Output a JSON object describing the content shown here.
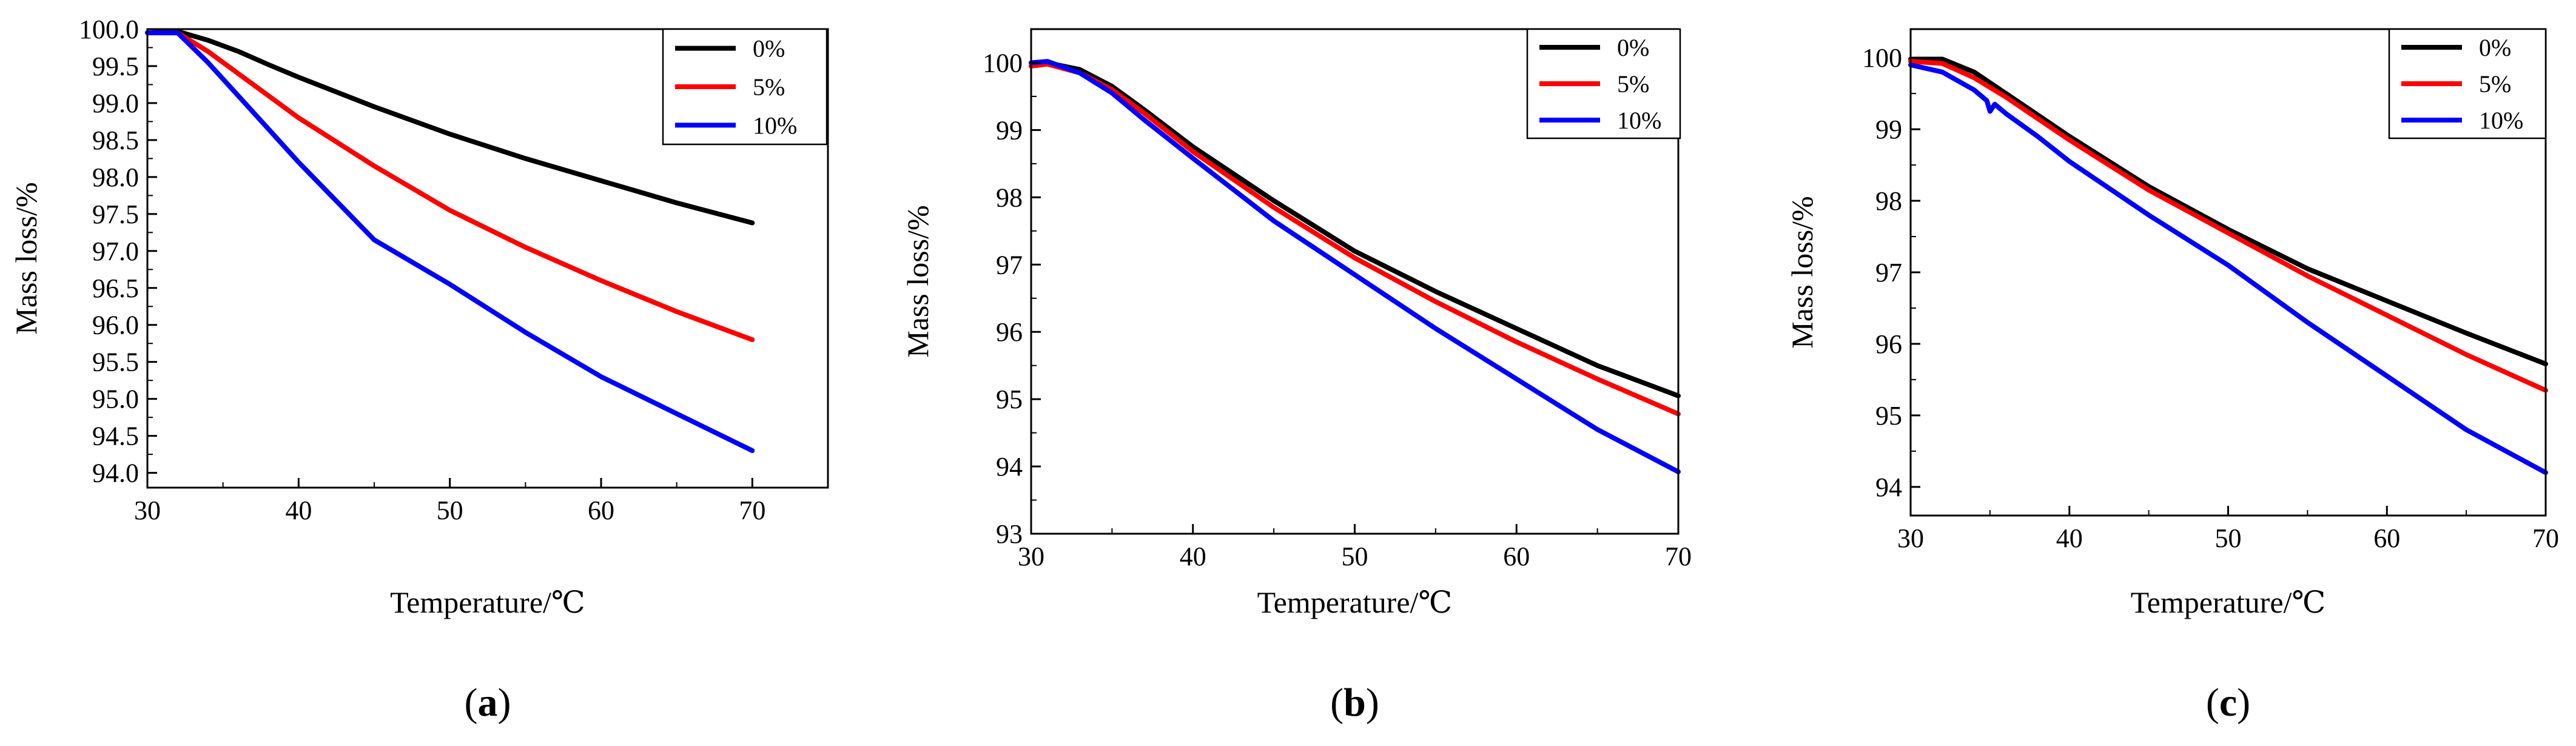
{
  "chart_data": [
    {
      "type": "line",
      "panel": "a",
      "caption": "(a)",
      "caption_parts": [
        "(",
        "a",
        ")"
      ],
      "xlabel": "Temperature/℃",
      "ylabel": "Mass loss/%",
      "xlim": [
        30,
        75
      ],
      "ylim": [
        93.8,
        100.0
      ],
      "xticks": [
        30,
        40,
        50,
        60,
        70
      ],
      "xtick_labels": [
        "30",
        "40",
        "50",
        "60",
        "70"
      ],
      "yticks": [
        94.0,
        94.5,
        95.0,
        95.5,
        96.0,
        96.5,
        97.0,
        97.5,
        98.0,
        98.5,
        99.0,
        99.5,
        100.0
      ],
      "ytick_labels": [
        "94.0",
        "94.5",
        "95.0",
        "95.5",
        "96.0",
        "96.5",
        "97.0",
        "97.5",
        "98.0",
        "98.5",
        "99.0",
        "99.5",
        "100.0"
      ],
      "legend": "top-right",
      "series": [
        {
          "name": "0%",
          "color": "#000000",
          "x": [
            30,
            32,
            34,
            36,
            38,
            40,
            45,
            50,
            55,
            60,
            65,
            70
          ],
          "y": [
            99.95,
            99.97,
            99.85,
            99.7,
            99.52,
            99.35,
            98.95,
            98.58,
            98.25,
            97.95,
            97.65,
            97.38
          ]
        },
        {
          "name": "5%",
          "color": "#ff0000",
          "x": [
            30,
            32,
            34,
            36,
            38,
            40,
            45,
            50,
            55,
            60,
            65,
            70
          ],
          "y": [
            99.95,
            99.95,
            99.7,
            99.4,
            99.1,
            98.8,
            98.15,
            97.55,
            97.05,
            96.6,
            96.18,
            95.8
          ]
        },
        {
          "name": "10%",
          "color": "#0000ff",
          "x": [
            30,
            32,
            34,
            36,
            38,
            40,
            45,
            50,
            55,
            60,
            65,
            70
          ],
          "y": [
            99.95,
            99.95,
            99.55,
            99.1,
            98.65,
            98.2,
            97.15,
            96.55,
            95.9,
            95.3,
            94.8,
            94.3
          ]
        }
      ]
    },
    {
      "type": "line",
      "panel": "b",
      "caption": "(b)",
      "caption_parts": [
        "(",
        "b",
        ")"
      ],
      "xlabel": "Temperature/℃",
      "ylabel": "Mass loss/%",
      "xlim": [
        30,
        70
      ],
      "ylim": [
        93,
        100.5
      ],
      "xticks": [
        30,
        40,
        50,
        60,
        70
      ],
      "xtick_labels": [
        "30",
        "40",
        "50",
        "60",
        "70"
      ],
      "yticks": [
        93,
        94,
        95,
        96,
        97,
        98,
        99,
        100
      ],
      "ytick_labels": [
        "93",
        "94",
        "95",
        "96",
        "97",
        "98",
        "99",
        "100"
      ],
      "legend": "top-right",
      "series": [
        {
          "name": "0%",
          "color": "#000000",
          "x": [
            30,
            31,
            33,
            35,
            37,
            40,
            45,
            50,
            55,
            60,
            65,
            70
          ],
          "y": [
            99.95,
            100.0,
            99.9,
            99.65,
            99.3,
            98.75,
            97.95,
            97.2,
            96.6,
            96.05,
            95.5,
            95.05
          ]
        },
        {
          "name": "5%",
          "color": "#ff0000",
          "x": [
            30,
            31,
            33,
            35,
            37,
            40,
            45,
            50,
            55,
            60,
            65,
            70
          ],
          "y": [
            99.95,
            99.98,
            99.85,
            99.6,
            99.25,
            98.68,
            97.85,
            97.1,
            96.45,
            95.85,
            95.3,
            94.78
          ]
        },
        {
          "name": "10%",
          "color": "#0000ff",
          "x": [
            30,
            31,
            33,
            35,
            37,
            40,
            45,
            50,
            55,
            60,
            65,
            70
          ],
          "y": [
            100.0,
            100.02,
            99.85,
            99.55,
            99.15,
            98.58,
            97.65,
            96.85,
            96.05,
            95.3,
            94.55,
            93.92
          ]
        }
      ]
    },
    {
      "type": "line",
      "panel": "c",
      "caption": "(c)",
      "caption_parts": [
        "(",
        "c",
        ")"
      ],
      "xlabel": "Temperature/℃",
      "ylabel": "Mass loss/%",
      "xlim": [
        30,
        70
      ],
      "ylim": [
        93.6,
        100.4
      ],
      "xticks": [
        30,
        40,
        50,
        60,
        70
      ],
      "xtick_labels": [
        "30",
        "40",
        "50",
        "60",
        "70"
      ],
      "yticks": [
        94,
        95,
        96,
        97,
        98,
        99,
        100
      ],
      "ytick_labels": [
        "94",
        "95",
        "96",
        "97",
        "98",
        "99",
        "100"
      ],
      "legend": "top-right",
      "series": [
        {
          "name": "0%",
          "color": "#000000",
          "x": [
            30,
            32,
            34,
            36,
            38,
            40,
            45,
            50,
            55,
            60,
            65,
            70
          ],
          "y": [
            99.98,
            99.98,
            99.8,
            99.5,
            99.2,
            98.9,
            98.2,
            97.6,
            97.05,
            96.6,
            96.15,
            95.72
          ]
        },
        {
          "name": "5%",
          "color": "#ff0000",
          "x": [
            30,
            32,
            34,
            36,
            38,
            40,
            45,
            50,
            55,
            60,
            65,
            70
          ],
          "y": [
            99.95,
            99.92,
            99.72,
            99.45,
            99.15,
            98.85,
            98.15,
            97.55,
            96.95,
            96.4,
            95.85,
            95.35
          ]
        },
        {
          "name": "10%",
          "color": "#0000ff",
          "x": [
            30,
            32,
            34,
            34.8,
            35,
            35.3,
            36,
            38,
            40,
            45,
            50,
            55,
            60,
            65,
            70
          ],
          "y": [
            99.9,
            99.8,
            99.55,
            99.4,
            99.25,
            99.35,
            99.22,
            98.9,
            98.55,
            97.8,
            97.1,
            96.3,
            95.55,
            94.8,
            94.2
          ]
        }
      ]
    }
  ]
}
